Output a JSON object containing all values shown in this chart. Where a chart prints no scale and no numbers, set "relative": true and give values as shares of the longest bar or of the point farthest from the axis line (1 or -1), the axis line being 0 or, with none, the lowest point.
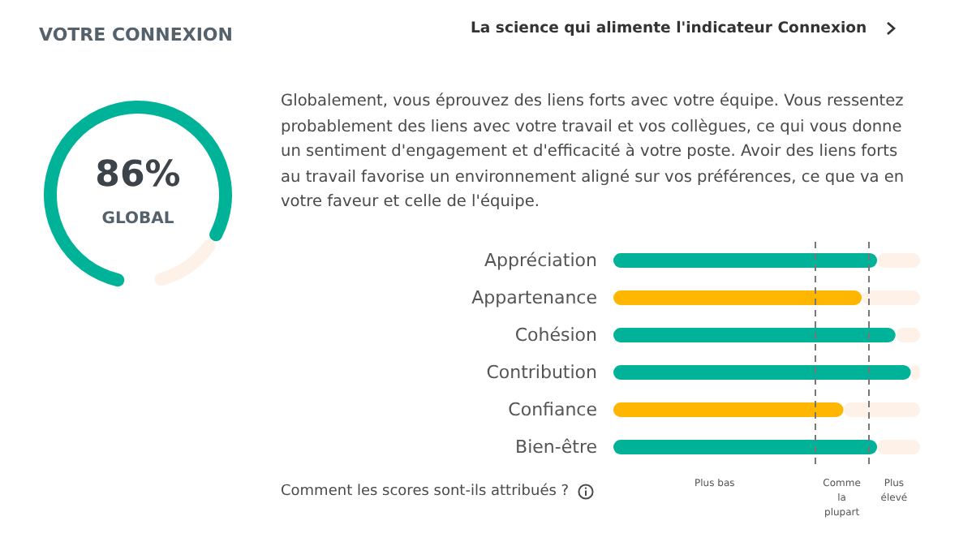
{
  "chart_data": [
    {
      "type": "donut",
      "title": "VOTRE CONNEXION",
      "categories": [
        null,
        null
      ],
      "values": [
        86,
        14
      ],
      "colors": [
        "#00b398",
        "#fdf1e8"
      ],
      "value_labels": [
        "86%",
        null
      ],
      "annotations": [
        "GLOBAL"
      ]
    },
    {
      "type": "bar",
      "orientation": "horizontal",
      "stacked": true,
      "relative": true,
      "categories": [
        "Appréciation",
        "Appartenance",
        "Cohésion",
        "Contribution",
        "Confiance",
        "Bien-être"
      ],
      "series": [
        {
          "colors": [
            "#00b398",
            "#ffb600",
            "#00b398",
            "#00b398",
            "#ffb600",
            "#00b398"
          ],
          "values": [
            0.86,
            0.81,
            0.92,
            0.97,
            0.75,
            0.86
          ]
        },
        {
          "color": "#fdf1e8",
          "values": [
            0.14,
            0.19,
            0.08,
            0.03,
            0.25,
            0.14
          ]
        }
      ],
      "ref_lines": [
        {
          "axis": "x",
          "value": 0.66,
          "line_style": "dashed",
          "color": "#777777"
        },
        {
          "axis": "x",
          "value": 0.83,
          "line_style": "dashed",
          "color": "#777777"
        }
      ],
      "annotations": [
        "La science qui alimente l'indicateur Connexion",
        "Globalement, vous éprouvez des liens forts avec votre équipe. Vous ressentez probablement des liens avec votre travail et vos collègues, ce qui vous donne un sentiment d'engagement et d'efficacité à votre poste. Avoir des liens forts au travail favorise un environnement aligné sur vos préférences, ce que va en votre faveur et celle de l'équipe.",
        "Comment les scores sont-ils attribués ?",
        "Plus bas",
        "Comme\nla\nplupart",
        "Plus\nélevé"
      ]
    }
  ]
}
